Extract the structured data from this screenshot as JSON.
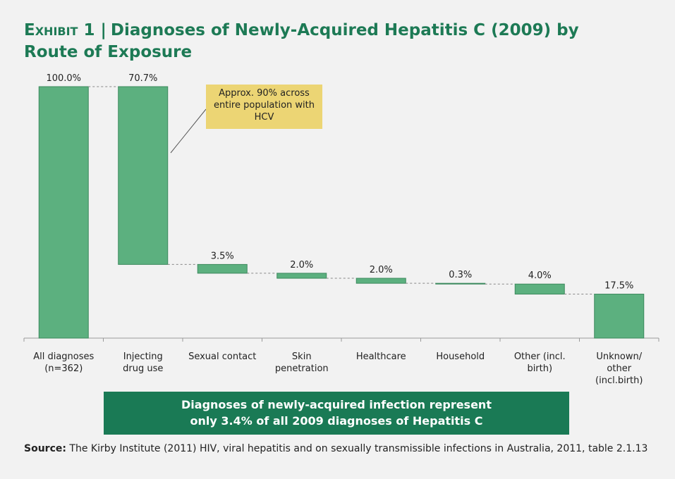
{
  "chart_data": {
    "type": "waterfall",
    "exhibit": "Exhibit 1 |",
    "title": "Diagnoses of Newly-Acquired Hepatitis C (2009) by Route of Exposure",
    "categories": [
      "All diagnoses\n(n=362)",
      "Injecting\ndrug use",
      "Sexual contact",
      "Skin\npenetration",
      "Healthcare",
      "Household",
      "Other (incl.\nbirth)",
      "Unknown/\nother\n(incl.birth)"
    ],
    "values": [
      100.0,
      70.7,
      3.5,
      2.0,
      2.0,
      0.3,
      4.0,
      17.5
    ],
    "value_labels": [
      "100.0%",
      "70.7%",
      "3.5%",
      "2.0%",
      "2.0%",
      "0.3%",
      "4.0%",
      "17.5%"
    ],
    "color": "#5cb07f",
    "annotation": "Approx. 90% across entire population with HCV",
    "callout": "Diagnoses of newly-acquired infection represent only 3.4% of all 2009 diagnoses of Hepatitis C",
    "source_label": "Source:",
    "source": "The Kirby Institute (2011) HIV, viral hepatitis and on sexually transmissible infections in Australia, 2011, table 2.1.13"
  }
}
